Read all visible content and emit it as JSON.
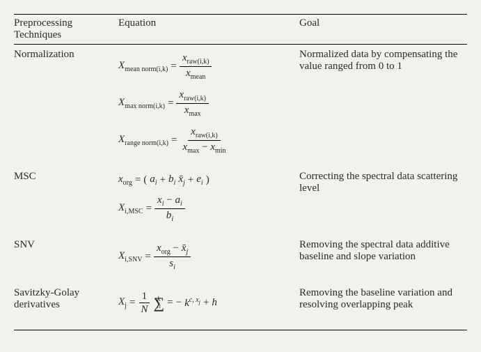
{
  "background_color": "#f2f1ed",
  "text_color": "#2a2a2a",
  "font_family": "Times New Roman",
  "rule_color": "#000000",
  "headers": {
    "techniques": "Preprocessing Techniques",
    "equation": "Equation",
    "goal": "Goal"
  },
  "rows": {
    "normalization": {
      "name": "Normalization",
      "goal": "Normalized data by compensating the value ranged from 0 to 1",
      "eq1": {
        "lhs_var": "X",
        "lhs_sub": "mean norm(i,k)",
        "num_var": "x",
        "num_sub": "raw(i,k)",
        "den_var": "x",
        "den_sub": "mean"
      },
      "eq2": {
        "lhs_var": "X",
        "lhs_sub": "max norm(i,k)",
        "num_var": "x",
        "num_sub": "raw(i,k)",
        "den_var": "x",
        "den_sub": "max"
      },
      "eq3": {
        "lhs_var": "X",
        "lhs_sub": "range norm(i,k)",
        "num_var": "x",
        "num_sub": "raw(i,k)",
        "den1_var": "x",
        "den1_sub": "max",
        "minus": "−",
        "den2_var": "x",
        "den2_sub": "min"
      }
    },
    "msc": {
      "name": "MSC",
      "goal": "Correcting the spectral data scattering level",
      "eq1": {
        "lhs_var": "x",
        "lhs_sub": "org",
        "open": "(",
        "a": "a",
        "ai": "i",
        "plus1": "+",
        "b": "b",
        "bi": "i",
        "xbar": "x̄",
        "xj": "j",
        "plus2": "+",
        "e": "e",
        "ei": "i",
        "close": ")"
      },
      "eq2": {
        "lhs_var": "X",
        "lhs_sub": "i,MSC",
        "num_x": "x",
        "num_xi": "i",
        "minus": "−",
        "num_a": "a",
        "num_ai": "i",
        "den_b": "b",
        "den_bi": "i"
      }
    },
    "snv": {
      "name": "SNV",
      "goal": "Removing the spectral data additive baseline and slope variation",
      "eq": {
        "lhs_var": "X",
        "lhs_sub": "i,SNV",
        "num_x": "x",
        "num_xsub": "org",
        "minus": "−",
        "num_xbar": "x̄",
        "num_xj": "j",
        "den_s": "s",
        "den_si": "i"
      }
    },
    "sg": {
      "name": "Savitzky-Golay derivatives",
      "goal": "Removing the baseline variation and resolving overlapping peak",
      "eq": {
        "lhs_var": "X",
        "lhs_sub": "j",
        "one": "1",
        "N": "N",
        "sigma": "∑",
        "sigma_sub": "h",
        "sigma_sup": "k",
        "eq2": "=",
        "minus": "−",
        "k": "k",
        "k_sup": "c, x",
        "k_sup2": "j",
        "plus": "+",
        "h": "h"
      }
    }
  }
}
